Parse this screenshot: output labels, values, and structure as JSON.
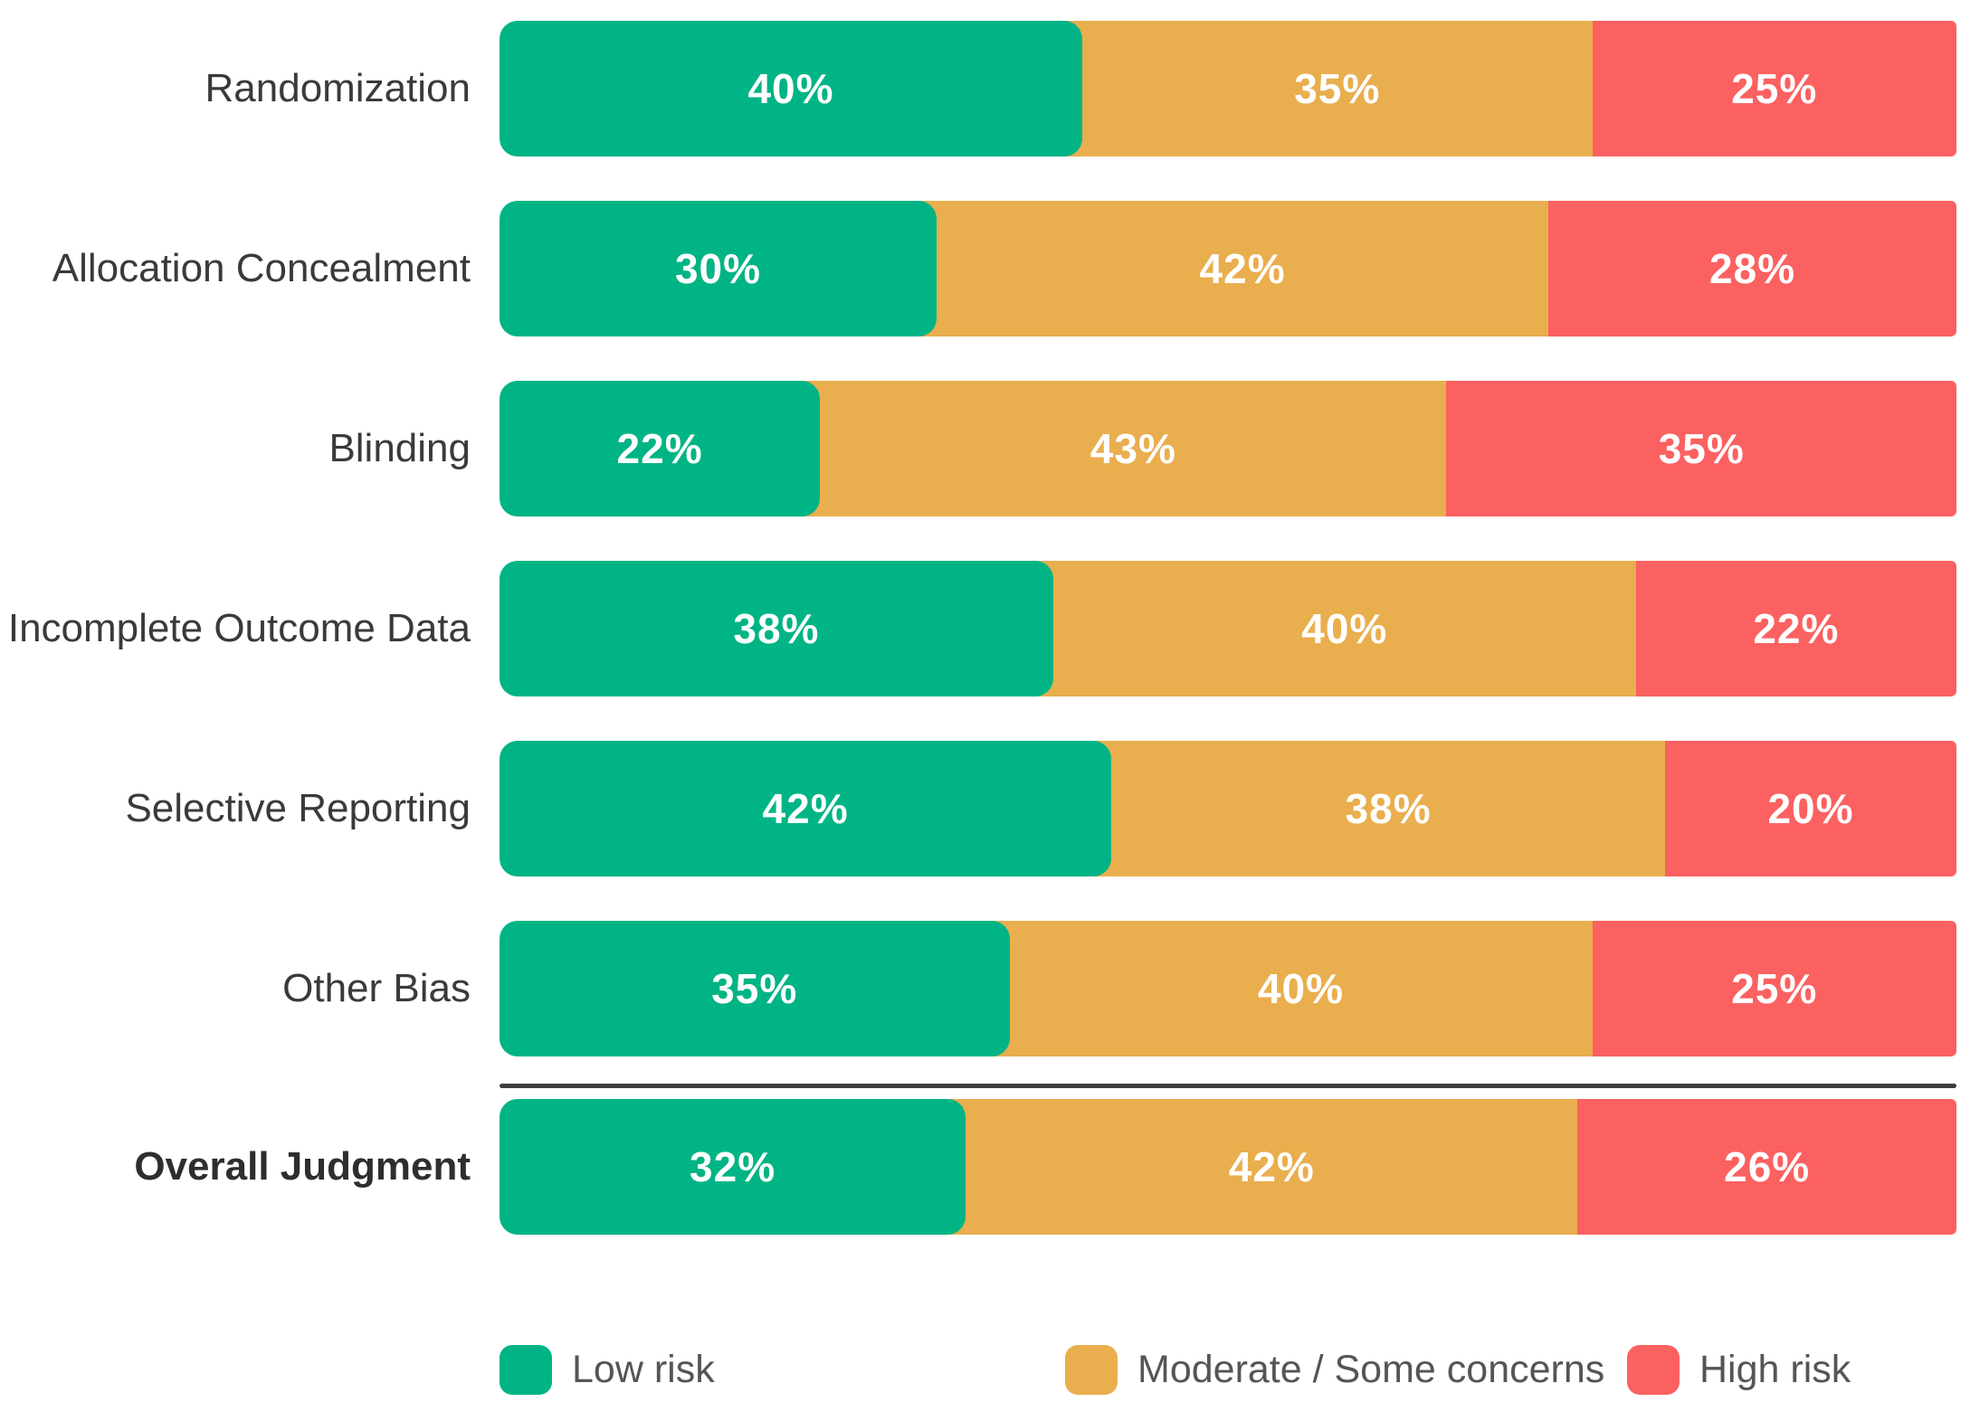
{
  "chart_data": {
    "type": "bar",
    "variant": "horizontal-stacked-100-percent",
    "title": "",
    "categories": [
      "Randomization",
      "Allocation Concealment",
      "Blinding",
      "Incomplete Outcome Data",
      "Selective Reporting",
      "Other Bias",
      "Overall Judgment"
    ],
    "series": [
      {
        "name": "Low risk",
        "key": "low",
        "color": "#00B485",
        "values": [
          40,
          30,
          22,
          38,
          42,
          35,
          32
        ]
      },
      {
        "name": "Moderate / Some concerns",
        "key": "moderate",
        "color": "#E9AE4E",
        "values": [
          35,
          42,
          43,
          40,
          38,
          40,
          42
        ]
      },
      {
        "name": "High risk",
        "key": "high",
        "color": "#FB6161",
        "values": [
          25,
          28,
          35,
          22,
          20,
          25,
          26
        ]
      }
    ],
    "value_suffix": "%",
    "xlim": [
      0,
      100
    ],
    "grid": false,
    "legend_position": "bottom",
    "emphasized_category_index": 6,
    "divider_before_category_index": 6
  },
  "legend": {
    "items": [
      {
        "label": "Low risk",
        "color": "#00B485"
      },
      {
        "label": "Moderate / Some concerns",
        "color": "#E9AE4E"
      },
      {
        "label": "High risk",
        "color": "#FB6161"
      }
    ]
  },
  "colors": {
    "low_risk": "#00B485",
    "moderate_risk": "#E9AE4E",
    "high_risk": "#FB6161",
    "category_label": "#3A3A3A",
    "emphasized_label": "#2E2E2E",
    "legend_label": "#555555",
    "divider": "#3D3D3D",
    "value_label": "#FFFFFF",
    "background": "#FFFFFF"
  }
}
